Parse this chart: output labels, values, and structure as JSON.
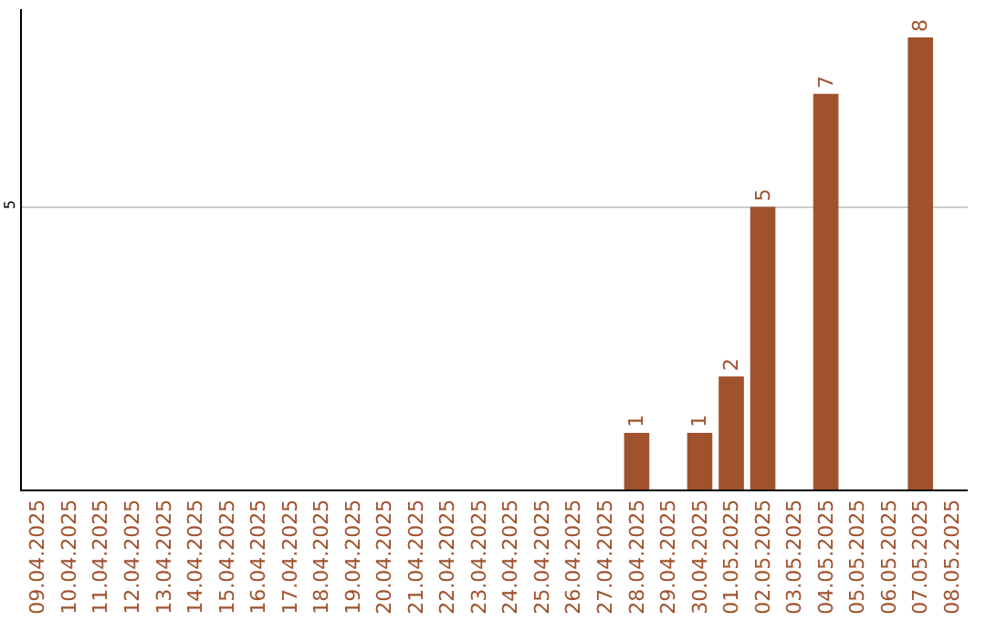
{
  "chart_data": {
    "type": "bar",
    "categories": [
      "09.04.2025",
      "10.04.2025",
      "11.04.2025",
      "12.04.2025",
      "13.04.2025",
      "14.04.2025",
      "15.04.2025",
      "16.04.2025",
      "17.04.2025",
      "18.04.2025",
      "19.04.2025",
      "20.04.2025",
      "21.04.2025",
      "22.04.2025",
      "23.04.2025",
      "24.04.2025",
      "25.04.2025",
      "26.04.2025",
      "27.04.2025",
      "28.04.2025",
      "29.04.2025",
      "30.04.2025",
      "01.05.2025",
      "02.05.2025",
      "03.05.2025",
      "04.05.2025",
      "05.05.2025",
      "06.05.2025",
      "07.05.2025",
      "08.05.2025"
    ],
    "values": [
      null,
      null,
      null,
      null,
      null,
      null,
      null,
      null,
      null,
      null,
      null,
      null,
      null,
      null,
      null,
      null,
      null,
      null,
      null,
      1,
      null,
      1,
      2,
      5,
      null,
      7,
      null,
      null,
      8,
      null
    ],
    "color": "#a0522d",
    "ylim": [
      0,
      8.5
    ],
    "yticks": [
      5
    ],
    "grid": "y",
    "data_labels": true
  }
}
